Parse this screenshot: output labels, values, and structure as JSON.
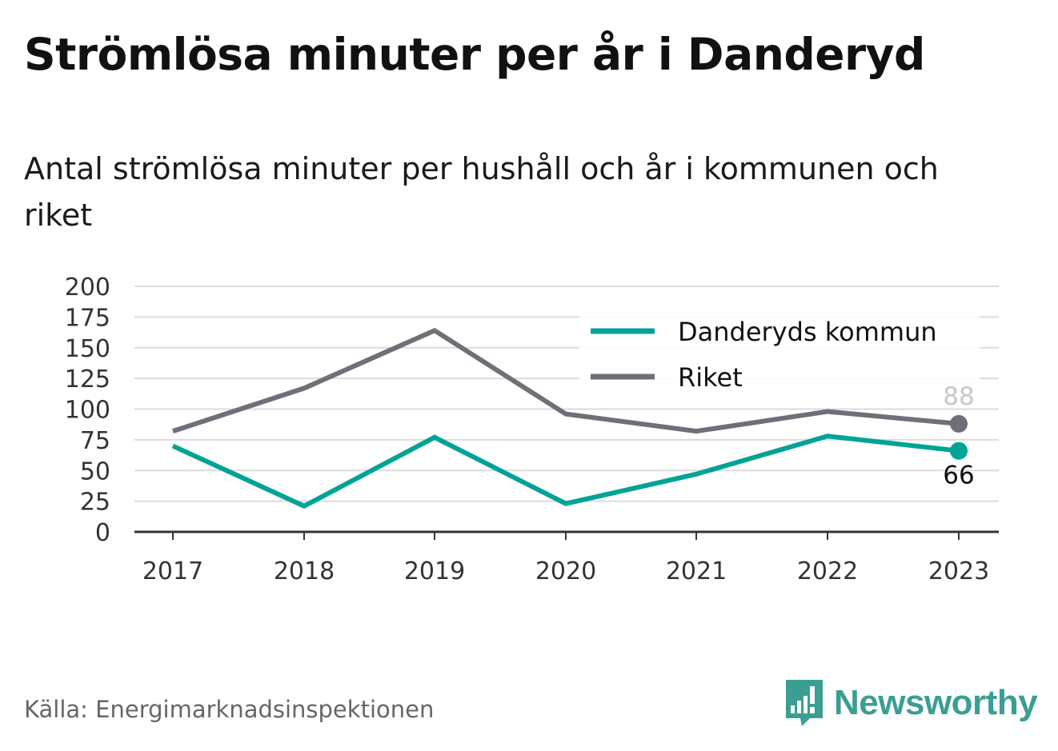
{
  "header": {
    "title": "Strömlösa minuter per år i Danderyd",
    "subtitle": "Antal strömlösa minuter per hushåll och år i kommunen och riket"
  },
  "footer": {
    "source": "Källa: Energimarknadsinspektionen",
    "brand": "Newsworthy"
  },
  "chart_data": {
    "type": "line",
    "x": [
      "2017",
      "2018",
      "2019",
      "2020",
      "2021",
      "2022",
      "2023"
    ],
    "ylim": [
      0,
      200
    ],
    "yticks": [
      0,
      25,
      50,
      75,
      100,
      125,
      150,
      175,
      200
    ],
    "grid": true,
    "legend_position": "top-right",
    "series": [
      {
        "name": "Danderyds kommun",
        "color": "#00a396",
        "values": [
          70,
          21,
          77,
          23,
          47,
          78,
          66
        ],
        "end_label": "66"
      },
      {
        "name": "Riket",
        "color": "#6f6f77",
        "values": [
          82,
          117,
          164,
          96,
          82,
          98,
          88
        ],
        "end_label": "88"
      }
    ]
  }
}
